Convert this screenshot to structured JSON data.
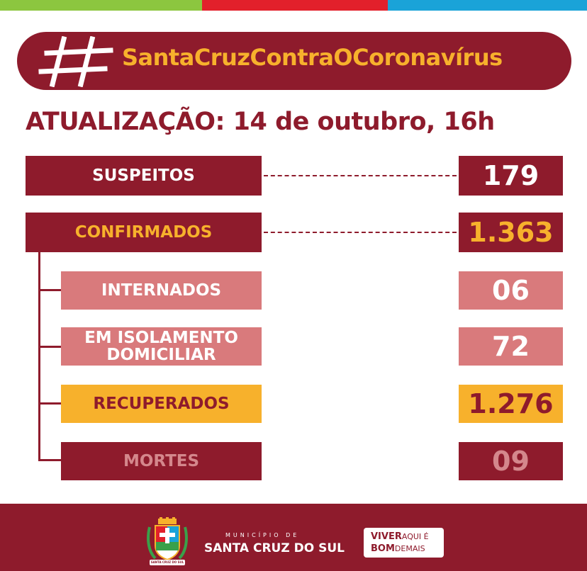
{
  "colors": {
    "maroon": "#8e1b2c",
    "gold": "#f7b12c",
    "pink": "#d97a7c",
    "muted_text": "#d4878c",
    "white": "#ffffff",
    "top_green": "#8cc63f",
    "top_red": "#e2202b",
    "top_blue": "#1aa3d8"
  },
  "banner": {
    "hashtag": "SantaCruzContraOCoronavírus"
  },
  "update": {
    "text": "ATUALIZAÇÃO: 14 de outubro, 16h"
  },
  "stats": {
    "suspeitos": {
      "label": "SUSPEITOS",
      "value": "179"
    },
    "confirmados": {
      "label": "CONFIRMADOS",
      "value": "1.363"
    },
    "internados": {
      "label": "INTERNADOS",
      "value": "06"
    },
    "isolamento": {
      "label_line1": "EM ISOLAMENTO",
      "label_line2": "DOMICILIAR",
      "value": "72"
    },
    "recuperados": {
      "label": "RECUPERADOS",
      "value": "1.276"
    },
    "mortes": {
      "label": "MORTES",
      "value": "09"
    }
  },
  "footer": {
    "municipio": "MUNICÍPIO DE",
    "city": "SANTA CRUZ DO SUL",
    "crest_text": "SANTA CRUZ DO SUL",
    "slogan_bold_1": "VIVER",
    "slogan_light_1": "AQUI É",
    "slogan_bold_2": "BOM",
    "slogan_light_2": "DEMAIS"
  }
}
